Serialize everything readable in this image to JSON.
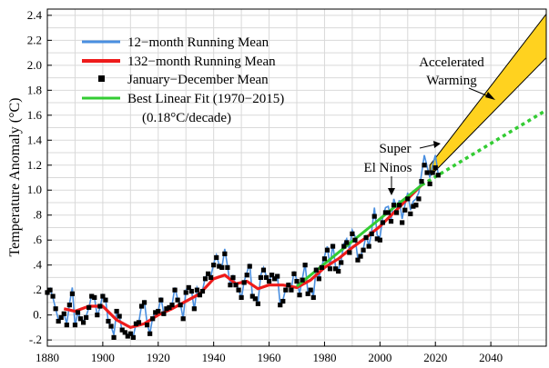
{
  "chart_data": {
    "type": "line",
    "title": "",
    "xlabel": "",
    "ylabel": "Temperature Anomaly (°C)",
    "xlim": [
      1880,
      2060
    ],
    "ylim": [
      -0.25,
      2.45
    ],
    "grid": true,
    "legend_position": "top-left",
    "x_ticks": [
      {
        "value": 1880,
        "label": "1880"
      },
      {
        "value": 1900,
        "label": "1900"
      },
      {
        "value": 1920,
        "label": "1920"
      },
      {
        "value": 1940,
        "label": "1940"
      },
      {
        "value": 1960,
        "label": "1960"
      },
      {
        "value": 1980,
        "label": "1980"
      },
      {
        "value": 2000,
        "label": "2000"
      },
      {
        "value": 2020,
        "label": "2020"
      },
      {
        "value": 2040,
        "label": "2040"
      }
    ],
    "y_ticks": [
      {
        "value": -0.2,
        "label": "-.2"
      },
      {
        "value": 0.0,
        "label": "0."
      },
      {
        "value": 0.2,
        "label": ".2"
      },
      {
        "value": 0.4,
        "label": ".4"
      },
      {
        "value": 0.6,
        "label": ".6"
      },
      {
        "value": 0.8,
        "label": ".8"
      },
      {
        "value": 1.0,
        "label": "1.0"
      },
      {
        "value": 1.2,
        "label": "1.2"
      },
      {
        "value": 1.4,
        "label": "1.4"
      },
      {
        "value": 1.6,
        "label": "1.6"
      },
      {
        "value": 1.8,
        "label": "1.8"
      },
      {
        "value": 2.0,
        "label": "2.0"
      },
      {
        "value": 2.2,
        "label": "2.2"
      },
      {
        "value": 2.4,
        "label": "2.4"
      }
    ],
    "series": [
      {
        "name": "12−month Running Mean",
        "kind": "line",
        "color": "#4a8fe0",
        "x": [
          1880,
          1881,
          1882,
          1883,
          1884,
          1885,
          1886,
          1887,
          1888,
          1889,
          1890,
          1891,
          1892,
          1893,
          1894,
          1895,
          1896,
          1897,
          1898,
          1899,
          1900,
          1901,
          1902,
          1903,
          1904,
          1905,
          1906,
          1907,
          1908,
          1909,
          1910,
          1911,
          1912,
          1913,
          1914,
          1915,
          1916,
          1917,
          1918,
          1919,
          1920,
          1921,
          1922,
          1923,
          1924,
          1925,
          1926,
          1927,
          1928,
          1929,
          1930,
          1931,
          1932,
          1933,
          1934,
          1935,
          1936,
          1937,
          1938,
          1939,
          1940,
          1941,
          1942,
          1943,
          1944,
          1945,
          1946,
          1947,
          1948,
          1949,
          1950,
          1951,
          1952,
          1953,
          1954,
          1955,
          1956,
          1957,
          1958,
          1959,
          1960,
          1961,
          1962,
          1963,
          1964,
          1965,
          1966,
          1967,
          1968,
          1969,
          1970,
          1971,
          1972,
          1973,
          1974,
          1975,
          1976,
          1977,
          1978,
          1979,
          1980,
          1981,
          1982,
          1983,
          1984,
          1985,
          1986,
          1987,
          1988,
          1989,
          1990,
          1991,
          1992,
          1993,
          1994,
          1995,
          1996,
          1997,
          1998,
          1999,
          2000,
          2001,
          2002,
          2003,
          2004,
          2005,
          2006,
          2007,
          2008,
          2009,
          2010,
          2011,
          2012,
          2013,
          2014,
          2015,
          2016,
          2017,
          2018,
          2019,
          2020,
          2021
        ],
        "y": [
          0.16,
          0.21,
          0.14,
          0.05,
          -0.04,
          -0.02,
          0.01,
          -0.07,
          0.09,
          0.22,
          -0.09,
          0.02,
          -0.03,
          -0.05,
          -0.01,
          0.06,
          0.16,
          0.14,
          -0.01,
          0.06,
          0.16,
          0.13,
          -0.06,
          -0.09,
          -0.16,
          0.03,
          -0.01,
          -0.13,
          -0.13,
          -0.16,
          -0.14,
          -0.17,
          -0.07,
          -0.06,
          0.08,
          0.11,
          -0.07,
          -0.15,
          -0.02,
          0.02,
          0.03,
          0.14,
          0.01,
          0.05,
          0.07,
          0.08,
          0.22,
          0.13,
          0.09,
          -0.03,
          0.2,
          0.23,
          0.2,
          0.04,
          0.22,
          0.17,
          0.2,
          0.3,
          0.34,
          0.31,
          0.41,
          0.48,
          0.4,
          0.38,
          0.53,
          0.39,
          0.24,
          0.31,
          0.24,
          0.21,
          0.13,
          0.27,
          0.34,
          0.41,
          0.15,
          0.13,
          0.1,
          0.32,
          0.38,
          0.31,
          0.27,
          0.33,
          0.3,
          0.32,
          0.08,
          0.12,
          0.21,
          0.25,
          0.2,
          0.35,
          0.28,
          0.17,
          0.29,
          0.41,
          0.18,
          0.21,
          0.15,
          0.38,
          0.3,
          0.39,
          0.47,
          0.55,
          0.38,
          0.57,
          0.38,
          0.36,
          0.44,
          0.57,
          0.61,
          0.52,
          0.68,
          0.63,
          0.45,
          0.47,
          0.53,
          0.64,
          0.55,
          0.67,
          0.86,
          0.64,
          0.62,
          0.78,
          0.86,
          0.87,
          0.76,
          0.93,
          0.86,
          0.92,
          0.77,
          0.88,
          0.98,
          0.84,
          0.91,
          0.93,
          0.98,
          1.13,
          1.28,
          1.19,
          1.1,
          1.2,
          1.28,
          1.13
        ]
      },
      {
        "name": "132−month Running Mean",
        "kind": "line",
        "color": "#ee1b1b",
        "x": [
          1886,
          1890,
          1895,
          1900,
          1905,
          1910,
          1915,
          1920,
          1925,
          1930,
          1935,
          1940,
          1944,
          1948,
          1952,
          1956,
          1960,
          1965,
          1970,
          1975,
          1980,
          1985,
          1990,
          1995,
          2000,
          2005,
          2010,
          2015
        ],
        "y": [
          0.05,
          0.03,
          0.07,
          0.07,
          -0.04,
          -0.1,
          -0.07,
          0.0,
          0.05,
          0.11,
          0.17,
          0.29,
          0.32,
          0.25,
          0.27,
          0.21,
          0.24,
          0.24,
          0.22,
          0.28,
          0.38,
          0.45,
          0.54,
          0.62,
          0.71,
          0.82,
          0.93,
          1.04
        ]
      },
      {
        "name": "January−December Mean",
        "kind": "scatter",
        "color": "#000000",
        "x": [
          1880,
          1881,
          1882,
          1883,
          1884,
          1885,
          1886,
          1887,
          1888,
          1889,
          1890,
          1891,
          1892,
          1893,
          1894,
          1895,
          1896,
          1897,
          1898,
          1899,
          1900,
          1901,
          1902,
          1903,
          1904,
          1905,
          1906,
          1907,
          1908,
          1909,
          1910,
          1911,
          1912,
          1913,
          1914,
          1915,
          1916,
          1917,
          1918,
          1919,
          1920,
          1921,
          1922,
          1923,
          1924,
          1925,
          1926,
          1927,
          1928,
          1929,
          1930,
          1931,
          1932,
          1933,
          1934,
          1935,
          1936,
          1937,
          1938,
          1939,
          1940,
          1941,
          1942,
          1943,
          1944,
          1945,
          1946,
          1947,
          1948,
          1949,
          1950,
          1951,
          1952,
          1953,
          1954,
          1955,
          1956,
          1957,
          1958,
          1959,
          1960,
          1961,
          1962,
          1963,
          1964,
          1965,
          1966,
          1967,
          1968,
          1969,
          1970,
          1971,
          1972,
          1973,
          1974,
          1975,
          1976,
          1977,
          1978,
          1979,
          1980,
          1981,
          1982,
          1983,
          1984,
          1985,
          1986,
          1987,
          1988,
          1989,
          1990,
          1991,
          1992,
          1993,
          1994,
          1995,
          1996,
          1997,
          1998,
          1999,
          2000,
          2001,
          2002,
          2003,
          2004,
          2005,
          2006,
          2007,
          2008,
          2009,
          2010,
          2011,
          2012,
          2013,
          2014,
          2015,
          2016,
          2017,
          2018,
          2019,
          2020,
          2021
        ],
        "y": [
          0.18,
          0.2,
          0.15,
          0.05,
          -0.05,
          -0.02,
          0.01,
          -0.08,
          0.08,
          0.17,
          -0.08,
          0.02,
          -0.03,
          -0.06,
          -0.02,
          0.06,
          0.15,
          0.14,
          0.0,
          0.07,
          0.15,
          0.12,
          -0.05,
          -0.09,
          -0.18,
          0.03,
          -0.01,
          -0.12,
          -0.14,
          -0.17,
          -0.15,
          -0.18,
          -0.07,
          -0.06,
          0.07,
          0.1,
          -0.08,
          -0.15,
          -0.03,
          0.02,
          0.03,
          0.12,
          0.01,
          0.05,
          0.06,
          0.08,
          0.2,
          0.12,
          0.08,
          -0.03,
          0.18,
          0.22,
          0.19,
          0.05,
          0.2,
          0.16,
          0.19,
          0.29,
          0.33,
          0.3,
          0.4,
          0.46,
          0.39,
          0.38,
          0.49,
          0.38,
          0.24,
          0.3,
          0.24,
          0.2,
          0.14,
          0.26,
          0.32,
          0.39,
          0.15,
          0.13,
          0.09,
          0.3,
          0.36,
          0.3,
          0.27,
          0.32,
          0.29,
          0.31,
          0.08,
          0.11,
          0.2,
          0.24,
          0.2,
          0.33,
          0.27,
          0.16,
          0.28,
          0.4,
          0.17,
          0.2,
          0.14,
          0.36,
          0.29,
          0.38,
          0.45,
          0.52,
          0.37,
          0.55,
          0.37,
          0.35,
          0.42,
          0.55,
          0.58,
          0.5,
          0.65,
          0.6,
          0.44,
          0.47,
          0.52,
          0.62,
          0.55,
          0.65,
          0.79,
          0.61,
          0.6,
          0.74,
          0.82,
          0.82,
          0.75,
          0.88,
          0.82,
          0.88,
          0.74,
          0.84,
          0.93,
          0.81,
          0.87,
          0.88,
          0.93,
          1.07,
          1.2,
          1.14,
          1.05,
          1.14,
          1.18,
          1.12
        ]
      },
      {
        "name": "Best Linear Fit (1970−2015)",
        "kind": "line",
        "color": "#33cc33",
        "x": [
          1970,
          2015
        ],
        "y": [
          0.23,
          1.04
        ]
      },
      {
        "name": "",
        "kind": "dashed-extension",
        "color": "#33cc33",
        "x": [
          2015,
          2060
        ],
        "y": [
          1.04,
          1.64
        ]
      },
      {
        "name": "",
        "kind": "band",
        "color": "#ffd21f",
        "x": [
          2018,
          2060
        ],
        "y_low": [
          1.11,
          2.06
        ],
        "y_high": [
          1.2,
          2.41
        ]
      }
    ],
    "annotations": [
      {
        "id": "fit-rate",
        "text": "(0.18°C/decade)"
      },
      {
        "id": "accel-1",
        "text": "Accelerated"
      },
      {
        "id": "accel-2",
        "text": "Warming"
      },
      {
        "id": "elnino-1",
        "text": "Super"
      },
      {
        "id": "elnino-2",
        "text": "El Ninos"
      }
    ]
  }
}
